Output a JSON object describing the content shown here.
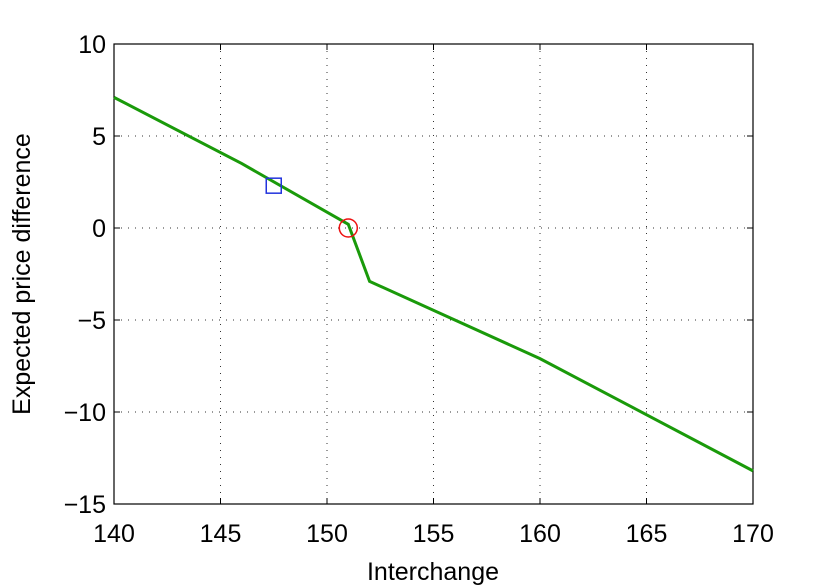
{
  "chart_data": {
    "type": "line",
    "xlabel": "Interchange",
    "ylabel": "Expected price difference",
    "x": [
      140,
      146,
      151,
      152,
      160,
      170
    ],
    "series": [
      {
        "color": "#1a9a0a",
        "values": [
          7.1,
          3.5,
          0.2,
          -2.9,
          -7.1,
          -13.2
        ]
      }
    ],
    "markers": [
      {
        "shape": "square",
        "color": "#2233dd",
        "x": 147.5,
        "y": 2.3
      },
      {
        "shape": "circle",
        "color": "#ee1111",
        "x": 151,
        "y": 0
      }
    ],
    "xlim": [
      140,
      170
    ],
    "ylim": [
      -15,
      10
    ],
    "xticks": [
      140,
      145,
      150,
      155,
      160,
      165,
      170
    ],
    "yticks": [
      {
        "value": -15,
        "label": "−15"
      },
      {
        "value": -10,
        "label": "−10"
      },
      {
        "value": -5,
        "label": "−5"
      },
      0,
      5,
      10
    ],
    "grid": true
  }
}
